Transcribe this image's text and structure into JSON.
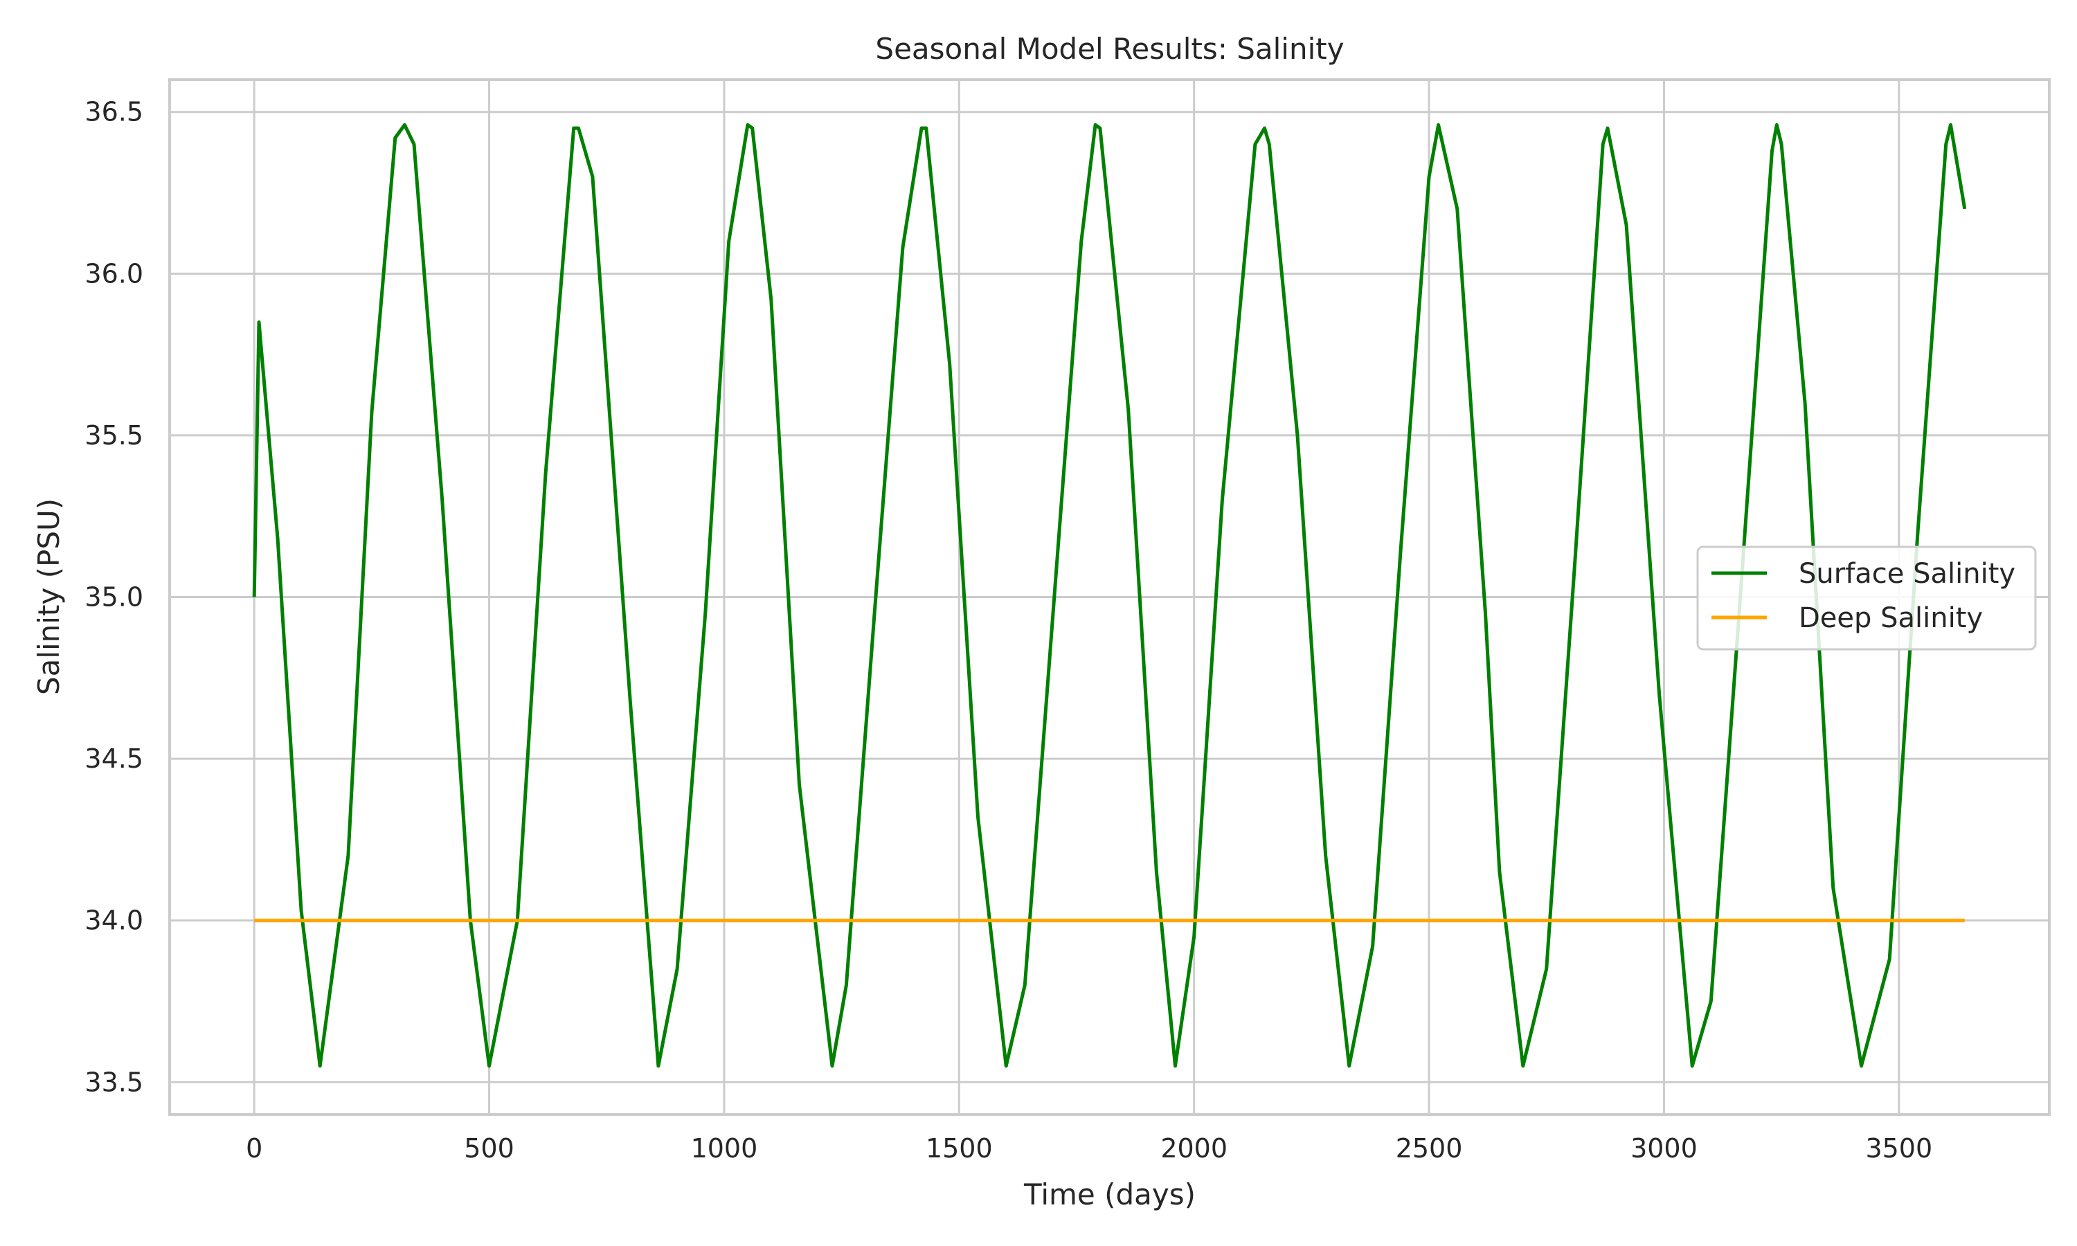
{
  "chart_data": {
    "type": "line",
    "title": "Seasonal Model Results: Salinity",
    "xlabel": "Time (days)",
    "ylabel": "Salinity (PSU)",
    "xlim": [
      -180,
      3820
    ],
    "ylim": [
      33.4,
      36.6
    ],
    "xticks": [
      0,
      500,
      1000,
      1500,
      2000,
      2500,
      3000,
      3500
    ],
    "xtick_labels": [
      "0",
      "500",
      "1000",
      "1500",
      "2000",
      "2500",
      "3000",
      "3500"
    ],
    "yticks": [
      33.5,
      34.0,
      34.5,
      35.0,
      35.5,
      36.0,
      36.5
    ],
    "ytick_labels": [
      "33.5",
      "34.0",
      "34.5",
      "35.0",
      "35.5",
      "36.0",
      "36.5"
    ],
    "grid": true,
    "legend": {
      "placement": "center-right"
    },
    "series": [
      {
        "name": "Surface Salinity",
        "color": "#008000",
        "x": [
          0,
          10,
          50,
          100,
          140,
          200,
          250,
          300,
          320,
          340,
          400,
          460,
          500,
          560,
          620,
          680,
          690,
          720,
          800,
          860,
          900,
          960,
          1010,
          1050,
          1060,
          1100,
          1160,
          1230,
          1260,
          1320,
          1380,
          1420,
          1430,
          1480,
          1540,
          1600,
          1640,
          1700,
          1760,
          1790,
          1800,
          1860,
          1920,
          1960,
          2000,
          2060,
          2130,
          2150,
          2160,
          2220,
          2280,
          2330,
          2380,
          2440,
          2500,
          2520,
          2560,
          2620,
          2650,
          2700,
          2750,
          2810,
          2870,
          2880,
          2920,
          2990,
          3060,
          3100,
          3160,
          3230,
          3240,
          3250,
          3300,
          3360,
          3420,
          3480,
          3540,
          3600,
          3610,
          3640
        ],
        "y": [
          35.0,
          35.85,
          35.18,
          34.03,
          33.55,
          34.2,
          35.57,
          36.42,
          36.46,
          36.4,
          35.3,
          34.0,
          33.55,
          34.0,
          35.38,
          36.45,
          36.45,
          36.3,
          34.68,
          33.55,
          33.85,
          34.95,
          36.1,
          36.46,
          36.45,
          35.92,
          34.42,
          33.55,
          33.8,
          34.95,
          36.08,
          36.45,
          36.45,
          35.72,
          34.32,
          33.55,
          33.8,
          34.95,
          36.1,
          36.46,
          36.45,
          35.58,
          34.15,
          33.55,
          33.95,
          35.3,
          36.4,
          36.45,
          36.4,
          35.5,
          34.2,
          33.55,
          33.92,
          35.15,
          36.3,
          36.46,
          36.2,
          34.95,
          34.15,
          33.55,
          33.85,
          35.1,
          36.4,
          36.45,
          36.15,
          34.7,
          33.55,
          33.75,
          34.95,
          36.38,
          36.46,
          36.4,
          35.6,
          34.1,
          33.55,
          33.88,
          35.2,
          36.4,
          36.46,
          36.2
        ]
      },
      {
        "name": "Deep Salinity",
        "color": "#ffa500",
        "x": [
          0,
          3640
        ],
        "y": [
          34.0,
          34.0
        ]
      }
    ]
  }
}
